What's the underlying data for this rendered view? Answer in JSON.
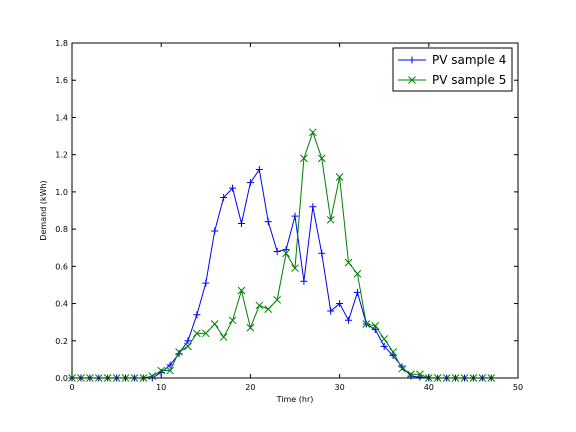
{
  "chart_data": {
    "type": "line",
    "title": "",
    "xlabel": "Time (hr)",
    "ylabel": "Demand (kWh)",
    "xlim": [
      0,
      50
    ],
    "ylim": [
      0.0,
      1.8
    ],
    "xticks": [
      0,
      10,
      20,
      30,
      40,
      50
    ],
    "yticks": [
      0.0,
      0.2,
      0.4,
      0.6,
      0.8,
      1.0,
      1.2,
      1.4,
      1.6,
      1.8
    ],
    "xtick_labels": [
      "0",
      "10",
      "20",
      "30",
      "40",
      "50"
    ],
    "ytick_labels": [
      "0.0",
      "0.2",
      "0.4",
      "0.6",
      "0.8",
      "1.0",
      "1.2",
      "1.4",
      "1.6",
      "1.8"
    ],
    "grid": false,
    "legend_position": "top-right",
    "x": [
      0,
      1,
      2,
      3,
      4,
      5,
      6,
      7,
      8,
      9,
      10,
      11,
      12,
      13,
      14,
      15,
      16,
      17,
      18,
      19,
      20,
      21,
      22,
      23,
      24,
      25,
      26,
      27,
      28,
      29,
      30,
      31,
      32,
      33,
      34,
      35,
      36,
      37,
      38,
      39,
      40,
      41,
      42,
      43,
      44,
      45,
      46,
      47
    ],
    "series": [
      {
        "name": "PV sample 4",
        "color": "#0000ff",
        "marker": "plus",
        "values": [
          0,
          0,
          0,
          0,
          0,
          0,
          0,
          0,
          0,
          0,
          0.03,
          0.07,
          0.13,
          0.2,
          0.34,
          0.51,
          0.79,
          0.97,
          1.02,
          0.83,
          1.05,
          1.12,
          0.84,
          0.68,
          0.69,
          0.87,
          0.52,
          0.92,
          0.67,
          0.36,
          0.4,
          0.31,
          0.46,
          0.29,
          0.26,
          0.17,
          0.12,
          0.06,
          0.01,
          0.005,
          0,
          0,
          0,
          0,
          0,
          0,
          0,
          0
        ]
      },
      {
        "name": "PV sample 5",
        "color": "#008000",
        "marker": "x",
        "values": [
          0,
          0,
          0,
          0,
          0,
          0,
          0,
          0,
          0,
          0.01,
          0.04,
          0.04,
          0.14,
          0.17,
          0.24,
          0.24,
          0.29,
          0.22,
          0.31,
          0.47,
          0.27,
          0.39,
          0.37,
          0.42,
          0.67,
          0.59,
          1.18,
          1.32,
          1.18,
          0.85,
          1.08,
          0.62,
          0.56,
          0.29,
          0.28,
          0.21,
          0.14,
          0.05,
          0.02,
          0.02,
          0,
          0,
          0,
          0,
          0,
          0,
          0,
          0
        ]
      }
    ]
  }
}
